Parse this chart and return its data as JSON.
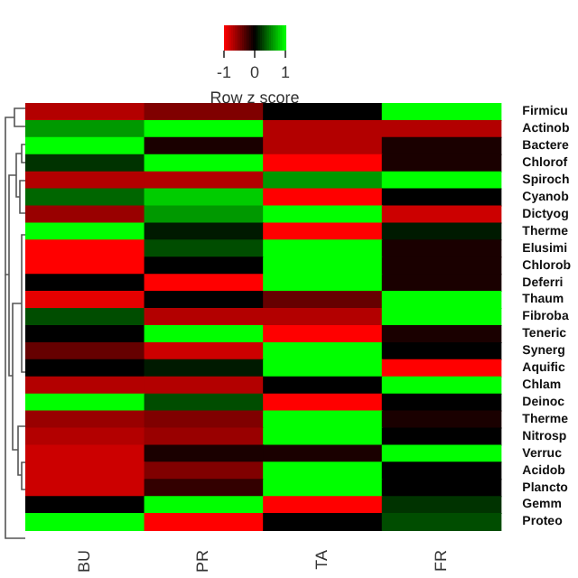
{
  "chart_data": {
    "type": "heatmap",
    "clabel": "Row z score",
    "clim": [
      -1,
      1
    ],
    "cticks": [
      -1,
      0,
      1
    ],
    "categories": [
      "BU",
      "PR",
      "TA",
      "FR"
    ],
    "y_categories": [
      "Firmicu",
      "Actinob",
      "Bactere",
      "Chlorof",
      "Spiroch",
      "Cyanob",
      "Dictyog",
      "Therme",
      "Elusimi",
      "Chlorob",
      "Deferri",
      "Thaum",
      "Fibroba",
      "Teneric",
      "Synerg",
      "Aquific",
      "Chlam",
      "Deinoc",
      "Therme",
      "Nitrosp",
      "Verruc",
      "Acidob",
      "Plancto",
      "Gemm",
      "Proteo"
    ],
    "cells": [
      [
        -0.7,
        -0.5,
        0,
        1
      ],
      [
        0.6,
        1,
        -0.7,
        -0.7
      ],
      [
        1,
        -0.1,
        -0.7,
        -0.1
      ],
      [
        0.2,
        1,
        -1,
        -0.1
      ],
      [
        -0.7,
        -0.7,
        0.6,
        1
      ],
      [
        0.4,
        0.8,
        -1,
        0
      ],
      [
        -0.6,
        0.6,
        1,
        -0.8
      ],
      [
        1,
        0.1,
        -1,
        0.1
      ],
      [
        -1,
        0.3,
        1,
        -0.1
      ],
      [
        -1,
        0,
        1,
        -0.1
      ],
      [
        0,
        -1,
        1,
        -0.1
      ],
      [
        -0.9,
        0,
        -0.4,
        1
      ],
      [
        0.3,
        -0.7,
        -0.7,
        1
      ],
      [
        0,
        1,
        -1,
        -0.1
      ],
      [
        -0.4,
        -0.8,
        1,
        0
      ],
      [
        0,
        0.1,
        1,
        -1
      ],
      [
        -0.7,
        -0.7,
        0,
        1
      ],
      [
        1,
        0.3,
        -1,
        0
      ],
      [
        -0.6,
        -0.5,
        1,
        -0.1
      ],
      [
        -0.7,
        -0.6,
        1,
        0
      ],
      [
        -0.8,
        -0.1,
        -0.1,
        1
      ],
      [
        -0.8,
        -0.5,
        1,
        0
      ],
      [
        -0.8,
        -0.2,
        1,
        0
      ],
      [
        0,
        1,
        -1,
        0.2
      ],
      [
        1,
        -1,
        0,
        0.3
      ]
    ]
  }
}
